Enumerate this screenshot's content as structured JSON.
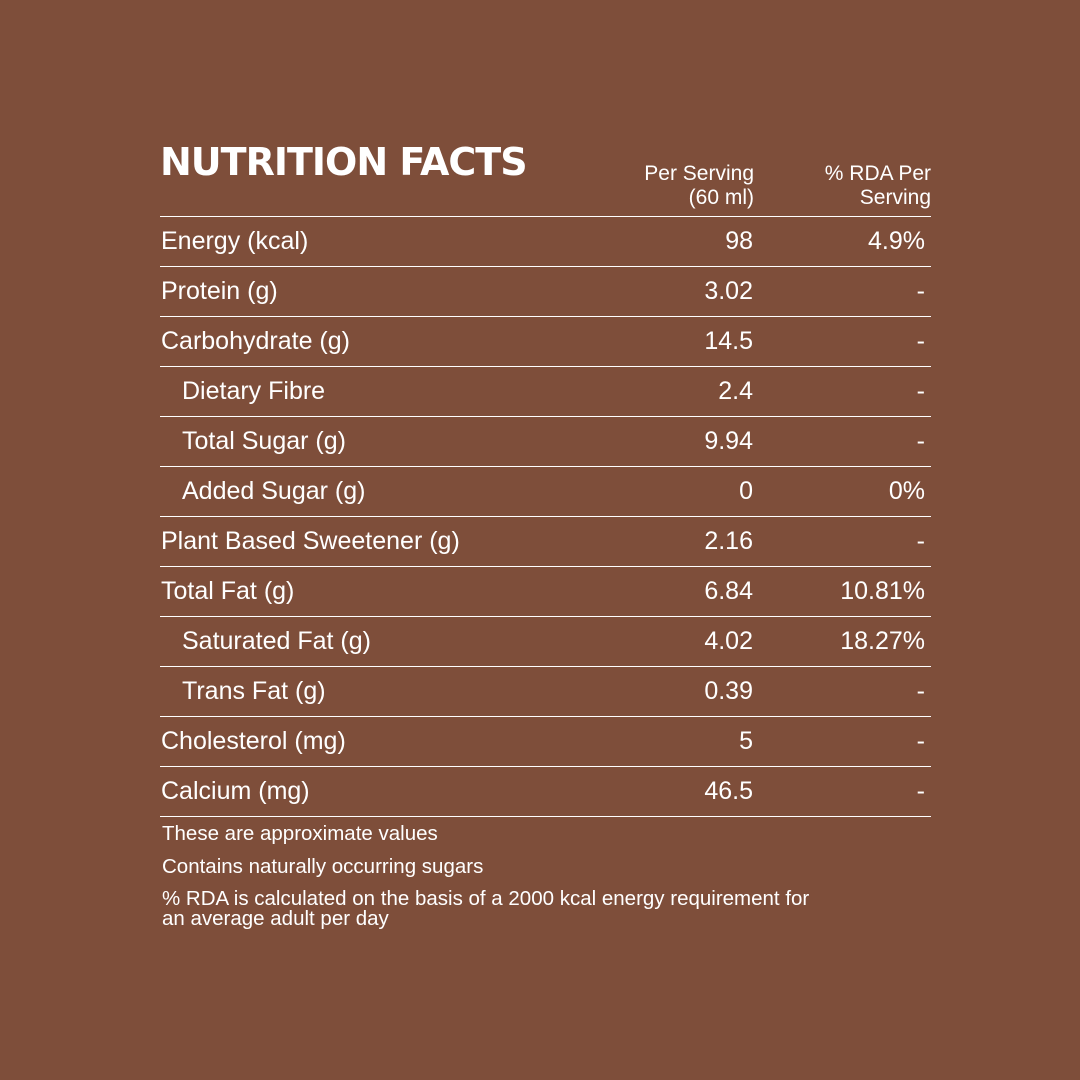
{
  "title": "NUTRITION FACTS",
  "columns": {
    "per_serving": "Per Serving\n(60 ml)",
    "rda": "% RDA Per\nServing"
  },
  "rows": [
    {
      "label": "Energy (kcal)",
      "value": "98",
      "rda": "4.9%"
    },
    {
      "label": "Protein (g)",
      "value": "3.02",
      "rda": "-"
    },
    {
      "label": "Carbohydrate (g)",
      "value": "14.5",
      "rda": "-"
    },
    {
      "label": "Dietary Fibre",
      "value": "2.4",
      "rda": "-"
    },
    {
      "label": "Total Sugar (g)",
      "value": "9.94",
      "rda": "-"
    },
    {
      "label": "Added Sugar (g)",
      "value": "0",
      "rda": "0%"
    },
    {
      "label": "Plant Based Sweetener (g)",
      "value": "2.16",
      "rda": "-"
    },
    {
      "label": "Total Fat (g)",
      "value": "6.84",
      "rda": "10.81%"
    },
    {
      "label": "Saturated Fat (g)",
      "value": "4.02",
      "rda": "18.27%"
    },
    {
      "label": "Trans Fat (g)",
      "value": "0.39",
      "rda": "-"
    },
    {
      "label": "Cholesterol (mg)",
      "value": "5",
      "rda": "-"
    },
    {
      "label": "Calcium (mg)",
      "value": "46.5",
      "rda": "-"
    }
  ],
  "notes": [
    "These are approximate values",
    "Contains naturally occurring sugars",
    "%  RDA is calculated on the basis of a 2000 kcal  energy requirement for\nan average adult per day"
  ],
  "colors": {
    "background": "#7e4e3a",
    "text": "#ffffff"
  }
}
